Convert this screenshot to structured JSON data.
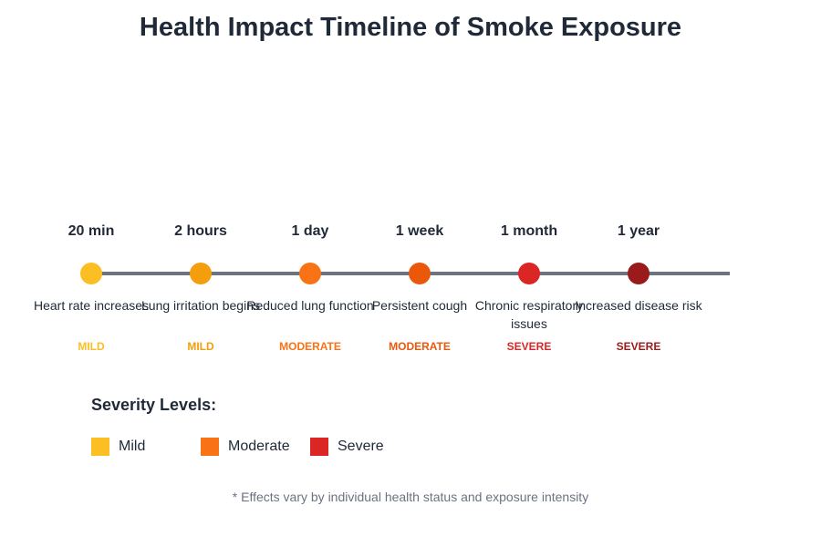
{
  "title": "Health Impact Timeline of Smoke Exposure",
  "events": [
    {
      "time": "20 min",
      "description": "Heart rate increases",
      "severity": "MILD",
      "color": "#fbbf24"
    },
    {
      "time": "2 hours",
      "description": "Lung irritation begins",
      "severity": "MILD",
      "color": "#f59e0b"
    },
    {
      "time": "1 day",
      "description": "Reduced lung function",
      "severity": "MODERATE",
      "color": "#f97316"
    },
    {
      "time": "1 week",
      "description": "Persistent cough",
      "severity": "MODERATE",
      "color": "#ea580c"
    },
    {
      "time": "1 month",
      "description": "Chronic respiratory issues",
      "severity": "SEVERE",
      "color": "#dc2626"
    },
    {
      "time": "1 year",
      "description": "Increased disease risk",
      "severity": "SEVERE",
      "color": "#991b1b"
    }
  ],
  "legend": {
    "title": "Severity Levels:",
    "items": [
      {
        "label": "Mild",
        "color": "#fbbf24"
      },
      {
        "label": "Moderate",
        "color": "#f97316"
      },
      {
        "label": "Severe",
        "color": "#dc2626"
      }
    ]
  },
  "footnote": "* Effects vary by individual health status and exposure intensity"
}
